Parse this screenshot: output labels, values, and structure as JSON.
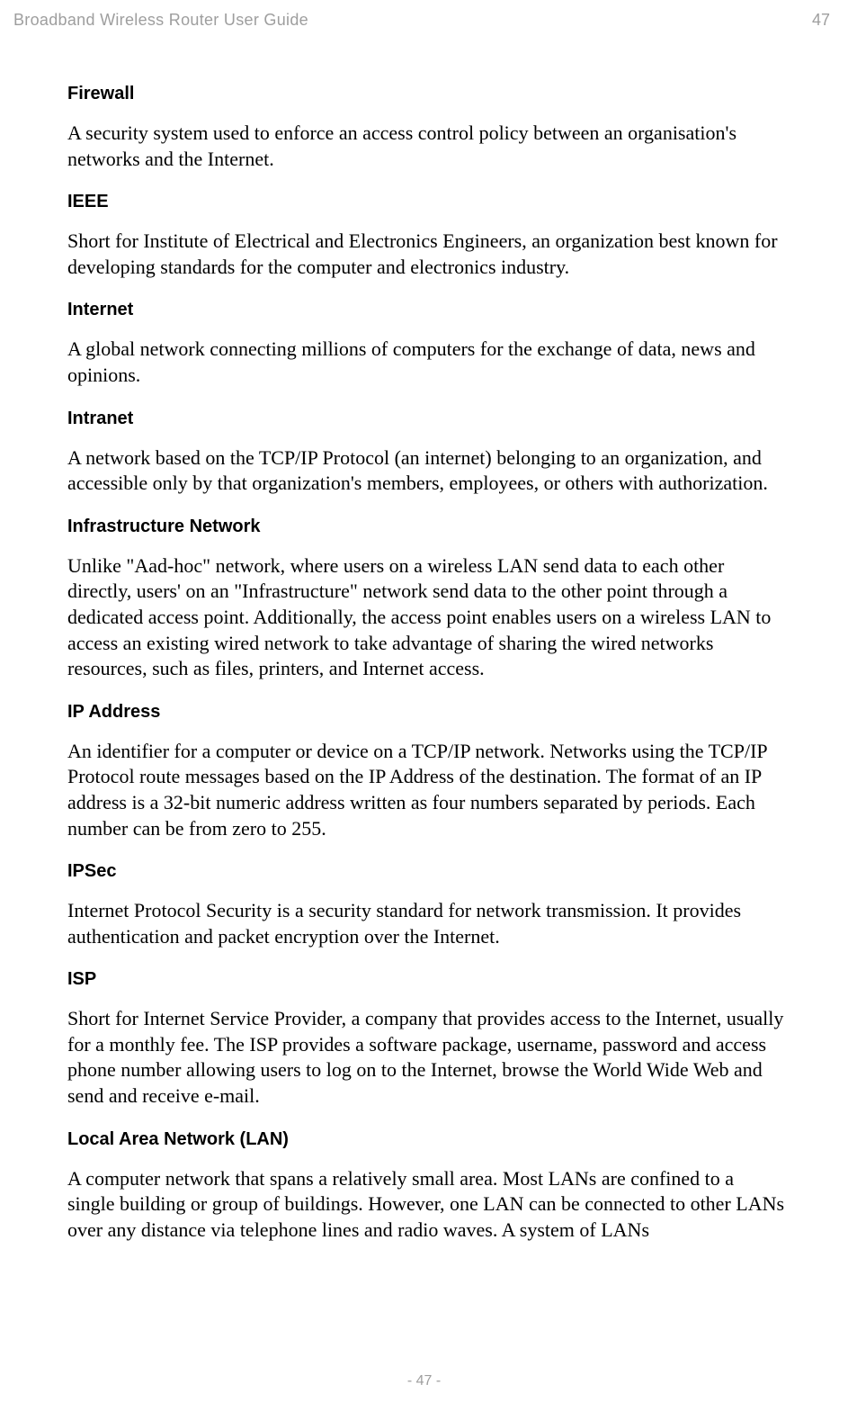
{
  "header": {
    "title": "Broadband Wireless Router User Guide",
    "pageNumber": "47"
  },
  "glossary": [
    {
      "term": "Firewall",
      "definition": "A security system used to enforce an access control policy between an organisation's networks and the Internet."
    },
    {
      "term": "IEEE",
      "definition": "Short for Institute of Electrical and Electronics Engineers, an organization best known for developing standards for the computer and electronics industry."
    },
    {
      "term": "Internet",
      "definition": "A global network connecting millions of computers for the exchange of data, news and opinions."
    },
    {
      "term": "Intranet",
      "definition": "A network based on the TCP/IP Protocol (an internet) belonging to an organization, and accessible only by that organization's members, employees, or others with authorization."
    },
    {
      "term": "Infrastructure Network",
      "definition": "Unlike \"Aad-hoc\" network, where users on a wireless LAN send data to each other directly, users' on an \"Infrastructure\" network send data to the other point through a dedicated access point. Additionally, the access point enables users on a wireless LAN to access an existing wired network to take advantage of sharing the wired networks resources, such as files, printers, and Internet access."
    },
    {
      "term": "IP Address",
      "definition": "An identifier for a computer or device on a TCP/IP network. Networks using the TCP/IP Protocol route messages based on the IP Address of the destination. The format of an IP address is a 32-bit numeric address written as four numbers separated by periods. Each number can be from zero to 255."
    },
    {
      "term": "IPSec",
      "definition": "Internet Protocol Security is a security standard for network transmission. It provides authentication and packet encryption over the Internet."
    },
    {
      "term": "ISP",
      "definition": "Short for Internet Service Provider, a company that provides access to the Internet, usually for a monthly fee. The ISP provides a software package, username, password and access phone number allowing users to log on to the Internet, browse the World Wide Web and send and receive e-mail."
    },
    {
      "term": "Local Area Network (LAN)",
      "definition": "A computer network that spans a relatively small area. Most LANs are confined to a single building or group of buildings. However, one LAN can be connected to other LANs over any distance via telephone lines and radio waves. A system of LANs"
    }
  ],
  "footer": {
    "pageLabel": "- 47 -"
  },
  "styling": {
    "pageWidth": 943,
    "pageHeight": 1568,
    "backgroundColor": "#ffffff",
    "headerColor": "#9e9e9e",
    "textColor": "#000000",
    "termFontFamily": "Arial",
    "termFontSize": 20,
    "termFontWeight": "bold",
    "definitionFontFamily": "Times New Roman",
    "definitionFontSize": 22,
    "headerFontSize": 18,
    "footerFontSize": 16
  }
}
